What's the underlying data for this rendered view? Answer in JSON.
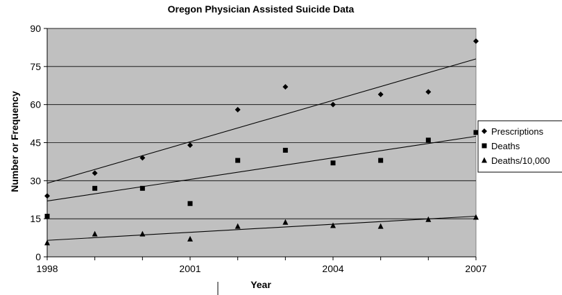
{
  "chart_data": {
    "type": "scatter",
    "title": "Oregon Physician Assisted Suicide Data",
    "xlabel": "Year",
    "ylabel": "Number or Frequency",
    "xlim": [
      1998,
      2007
    ],
    "ylim": [
      0,
      90
    ],
    "x_ticks": [
      "1998",
      "2001",
      "2004",
      "2007"
    ],
    "y_ticks": [
      "0",
      "15",
      "30",
      "45",
      "60",
      "75",
      "90"
    ],
    "grid": "horizontal",
    "plot_background": "#c0c0c0",
    "legend_position": "right",
    "x": [
      1998,
      1999,
      2000,
      2001,
      2002,
      2003,
      2004,
      2005,
      2006,
      2007
    ],
    "series": [
      {
        "name": "Prescriptions",
        "marker": "diamond",
        "values": [
          24,
          33,
          39,
          44,
          58,
          67,
          60,
          64,
          65,
          85
        ],
        "trendline": [
          29,
          78
        ]
      },
      {
        "name": "Deaths",
        "marker": "square",
        "values": [
          16,
          27,
          27,
          21,
          38,
          42,
          37,
          38,
          46,
          49
        ],
        "trendline": [
          22,
          47.5
        ]
      },
      {
        "name": "Deaths/10,000",
        "marker": "triangle",
        "values": [
          5.5,
          9,
          9,
          7,
          12,
          13.6,
          12.3,
          12,
          14.7,
          15.6
        ],
        "trendline": [
          6.5,
          16
        ]
      }
    ]
  }
}
